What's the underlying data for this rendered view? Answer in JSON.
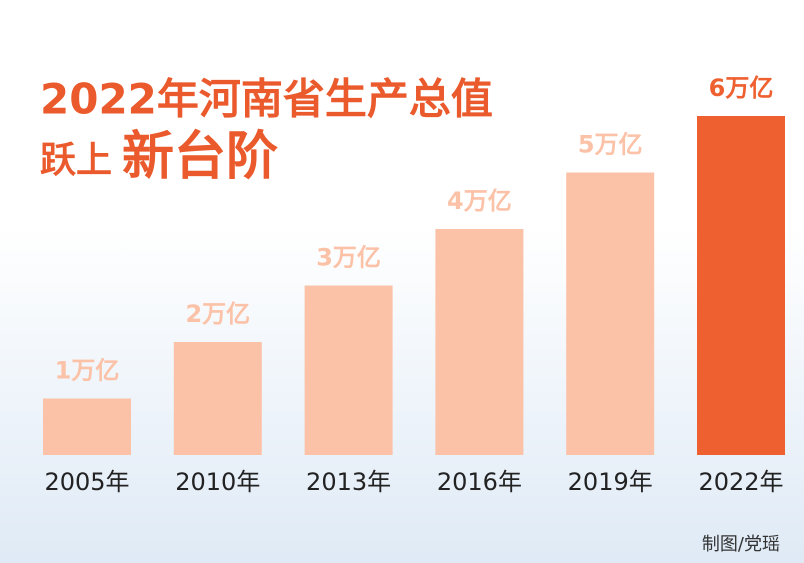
{
  "chart_data": {
    "type": "bar",
    "title_parts": [
      "2022年河南省生产总值",
      "跃上",
      "新台阶"
    ],
    "categories": [
      "2005年",
      "2010年",
      "2013年",
      "2016年",
      "2019年",
      "2022年"
    ],
    "values": [
      1,
      2,
      3,
      4,
      5,
      6
    ],
    "value_labels": [
      "1万亿",
      "2万亿",
      "3万亿",
      "4万亿",
      "5万亿",
      "6万亿"
    ],
    "colors": [
      "#fbc2a8",
      "#fbc2a8",
      "#fbc2a8",
      "#fbc2a8",
      "#fbc2a8",
      "#ef6030"
    ],
    "credit": "制图/党瑶"
  }
}
